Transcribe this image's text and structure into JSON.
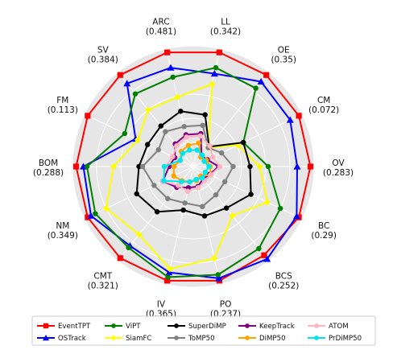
{
  "chart_data": {
    "type": "radar",
    "axes": [
      {
        "name": "LL",
        "value_label": "(0.342)"
      },
      {
        "name": "OE",
        "value_label": "(0.35)"
      },
      {
        "name": "CM",
        "value_label": "(0.072)"
      },
      {
        "name": "OV",
        "value_label": "(0.283)"
      },
      {
        "name": "BC",
        "value_label": "(0.29)"
      },
      {
        "name": "BCS",
        "value_label": "(0.252)"
      },
      {
        "name": "PO",
        "value_label": "(0.237)"
      },
      {
        "name": "IV",
        "value_label": "(0.365)"
      },
      {
        "name": "CMT",
        "value_label": "(0.321)"
      },
      {
        "name": "NM",
        "value_label": "(0.349)"
      },
      {
        "name": "BOM",
        "value_label": "(0.288)"
      },
      {
        "name": "FM",
        "value_label": "(0.113)"
      },
      {
        "name": "SV",
        "value_label": "(0.384)"
      },
      {
        "name": "ARC",
        "value_label": "(0.481)"
      }
    ],
    "range": [
      0,
      1
    ],
    "grid": true,
    "legend_position": "bottom",
    "series": [
      {
        "name": "EventTPT",
        "color": "#ff0000",
        "marker": "square",
        "values": [
          0.97,
          0.97,
          0.97,
          0.97,
          0.97,
          0.94,
          0.97,
          0.97,
          0.97,
          0.97,
          0.97,
          0.97,
          0.97,
          0.97
        ]
      },
      {
        "name": "OSTrack",
        "color": "#0000ff",
        "marker": "triangle",
        "values": [
          0.79,
          0.9,
          0.89,
          0.86,
          0.95,
          0.98,
          0.95,
          0.9,
          0.84,
          0.94,
          0.91,
          0.53,
          0.88,
          0.84
        ]
      },
      {
        "name": "ViPT",
        "color": "#008000",
        "marker": "circle",
        "values": [
          0.84,
          0.83,
          0.46,
          0.62,
          0.8,
          0.87,
          0.92,
          0.94,
          0.86,
          0.9,
          0.88,
          0.63,
          0.77,
          0.76
        ]
      },
      {
        "name": "SiamFC",
        "color": "#ffff00",
        "marker": "diamond",
        "values": [
          0.7,
          0.2,
          0.41,
          0.55,
          0.68,
          0.52,
          0.78,
          0.87,
          0.72,
          0.8,
          0.66,
          0.51,
          0.6,
          0.59
        ]
      },
      {
        "name": "SuperDiMP",
        "color": "#000000",
        "marker": "circle",
        "values": [
          0.44,
          0.21,
          0.46,
          0.47,
          0.53,
          0.44,
          0.42,
          0.37,
          0.48,
          0.52,
          0.45,
          0.42,
          0.43,
          0.47
        ]
      },
      {
        "name": "ToMP50",
        "color": "#808080",
        "marker": "circle",
        "values": [
          0.35,
          0.2,
          0.26,
          0.33,
          0.29,
          0.3,
          0.34,
          0.31,
          0.34,
          0.36,
          0.42,
          0.32,
          0.37,
          0.34
        ]
      },
      {
        "name": "KeepTrack",
        "color": "#800080",
        "marker": "circle",
        "values": [
          0.28,
          0.11,
          0.13,
          0.21,
          0.15,
          0.13,
          0.17,
          0.18,
          0.22,
          0.28,
          0.2,
          0.17,
          0.24,
          0.27
        ]
      },
      {
        "name": "DiMP50",
        "color": "#ffa500",
        "marker": "circle",
        "values": [
          0.2,
          0.1,
          0.12,
          0.14,
          0.16,
          0.1,
          0.12,
          0.13,
          0.15,
          0.18,
          0.16,
          0.12,
          0.16,
          0.18
        ]
      },
      {
        "name": "ATOM",
        "color": "#ffb6c1",
        "marker": "circle",
        "values": [
          0.26,
          0.22,
          0.18,
          0.22,
          0.16,
          0.15,
          0.18,
          0.21,
          0.2,
          0.28,
          0.23,
          0.19,
          0.22,
          0.25
        ]
      },
      {
        "name": "PrDiMP50",
        "color": "#00e5ee",
        "marker": "circle",
        "values": [
          0.14,
          0.12,
          0.1,
          0.13,
          0.11,
          0.12,
          0.11,
          0.13,
          0.16,
          0.27,
          0.24,
          0.12,
          0.14,
          0.14
        ]
      }
    ]
  }
}
